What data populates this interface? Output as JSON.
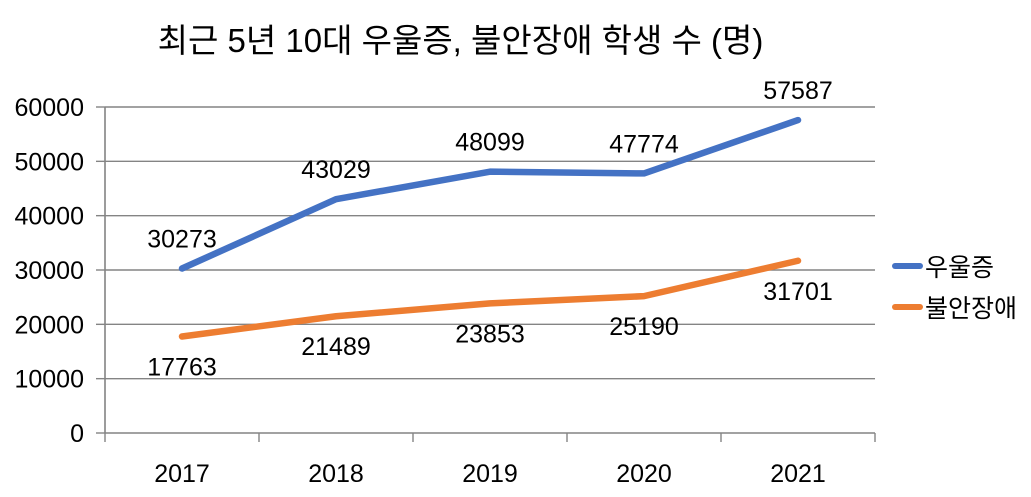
{
  "title": "최근 5년 10대 우울증, 불안장애 학생 수 (명)",
  "chart_data": {
    "type": "line",
    "title": "최근 5년 10대 우울증, 불안장애 학생 수 (명)",
    "categories": [
      "2017",
      "2018",
      "2019",
      "2020",
      "2021"
    ],
    "series": [
      {
        "name": "우울증",
        "color": "#4472C4",
        "values": [
          30273,
          43029,
          48099,
          47774,
          57587
        ],
        "label_position": "above"
      },
      {
        "name": "불안장애",
        "color": "#ED7D31",
        "values": [
          17763,
          21489,
          23853,
          25190,
          31701
        ],
        "label_position": "below"
      }
    ],
    "ylim": [
      0,
      60000
    ],
    "ytick_interval": 10000,
    "yticks": [
      0,
      10000,
      20000,
      30000,
      40000,
      50000,
      60000
    ],
    "grid": "horizontal",
    "legend_position": "right",
    "data_labels": true,
    "colors": {
      "gridline": "#848484",
      "axis": "#848484",
      "text": "#000000",
      "background": "#FFFFFF"
    }
  }
}
